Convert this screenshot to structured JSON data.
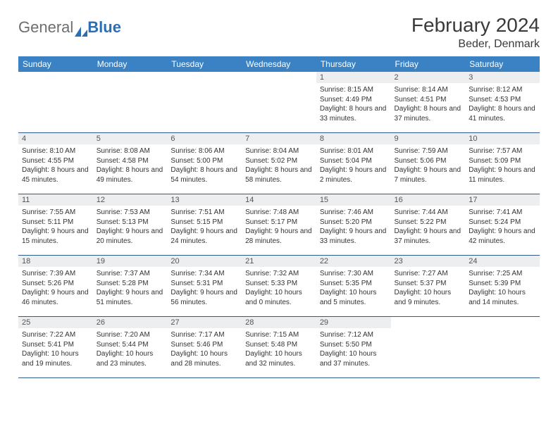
{
  "brand": {
    "part1": "General",
    "part2": "Blue"
  },
  "title": "February 2024",
  "location": "Beder, Denmark",
  "colors": {
    "header_bg": "#3b82c4",
    "header_text": "#ffffff",
    "daynum_bg": "#eceef0",
    "rule": "#2f5a8a",
    "logo_gray": "#6e6e6e",
    "logo_blue": "#2a6fb5"
  },
  "weekdays": [
    "Sunday",
    "Monday",
    "Tuesday",
    "Wednesday",
    "Thursday",
    "Friday",
    "Saturday"
  ],
  "days": [
    {
      "n": "1",
      "sunrise": "8:15 AM",
      "sunset": "4:49 PM",
      "daylight": "8 hours and 33 minutes."
    },
    {
      "n": "2",
      "sunrise": "8:14 AM",
      "sunset": "4:51 PM",
      "daylight": "8 hours and 37 minutes."
    },
    {
      "n": "3",
      "sunrise": "8:12 AM",
      "sunset": "4:53 PM",
      "daylight": "8 hours and 41 minutes."
    },
    {
      "n": "4",
      "sunrise": "8:10 AM",
      "sunset": "4:55 PM",
      "daylight": "8 hours and 45 minutes."
    },
    {
      "n": "5",
      "sunrise": "8:08 AM",
      "sunset": "4:58 PM",
      "daylight": "8 hours and 49 minutes."
    },
    {
      "n": "6",
      "sunrise": "8:06 AM",
      "sunset": "5:00 PM",
      "daylight": "8 hours and 54 minutes."
    },
    {
      "n": "7",
      "sunrise": "8:04 AM",
      "sunset": "5:02 PM",
      "daylight": "8 hours and 58 minutes."
    },
    {
      "n": "8",
      "sunrise": "8:01 AM",
      "sunset": "5:04 PM",
      "daylight": "9 hours and 2 minutes."
    },
    {
      "n": "9",
      "sunrise": "7:59 AM",
      "sunset": "5:06 PM",
      "daylight": "9 hours and 7 minutes."
    },
    {
      "n": "10",
      "sunrise": "7:57 AM",
      "sunset": "5:09 PM",
      "daylight": "9 hours and 11 minutes."
    },
    {
      "n": "11",
      "sunrise": "7:55 AM",
      "sunset": "5:11 PM",
      "daylight": "9 hours and 15 minutes."
    },
    {
      "n": "12",
      "sunrise": "7:53 AM",
      "sunset": "5:13 PM",
      "daylight": "9 hours and 20 minutes."
    },
    {
      "n": "13",
      "sunrise": "7:51 AM",
      "sunset": "5:15 PM",
      "daylight": "9 hours and 24 minutes."
    },
    {
      "n": "14",
      "sunrise": "7:48 AM",
      "sunset": "5:17 PM",
      "daylight": "9 hours and 28 minutes."
    },
    {
      "n": "15",
      "sunrise": "7:46 AM",
      "sunset": "5:20 PM",
      "daylight": "9 hours and 33 minutes."
    },
    {
      "n": "16",
      "sunrise": "7:44 AM",
      "sunset": "5:22 PM",
      "daylight": "9 hours and 37 minutes."
    },
    {
      "n": "17",
      "sunrise": "7:41 AM",
      "sunset": "5:24 PM",
      "daylight": "9 hours and 42 minutes."
    },
    {
      "n": "18",
      "sunrise": "7:39 AM",
      "sunset": "5:26 PM",
      "daylight": "9 hours and 46 minutes."
    },
    {
      "n": "19",
      "sunrise": "7:37 AM",
      "sunset": "5:28 PM",
      "daylight": "9 hours and 51 minutes."
    },
    {
      "n": "20",
      "sunrise": "7:34 AM",
      "sunset": "5:31 PM",
      "daylight": "9 hours and 56 minutes."
    },
    {
      "n": "21",
      "sunrise": "7:32 AM",
      "sunset": "5:33 PM",
      "daylight": "10 hours and 0 minutes."
    },
    {
      "n": "22",
      "sunrise": "7:30 AM",
      "sunset": "5:35 PM",
      "daylight": "10 hours and 5 minutes."
    },
    {
      "n": "23",
      "sunrise": "7:27 AM",
      "sunset": "5:37 PM",
      "daylight": "10 hours and 9 minutes."
    },
    {
      "n": "24",
      "sunrise": "7:25 AM",
      "sunset": "5:39 PM",
      "daylight": "10 hours and 14 minutes."
    },
    {
      "n": "25",
      "sunrise": "7:22 AM",
      "sunset": "5:41 PM",
      "daylight": "10 hours and 19 minutes."
    },
    {
      "n": "26",
      "sunrise": "7:20 AM",
      "sunset": "5:44 PM",
      "daylight": "10 hours and 23 minutes."
    },
    {
      "n": "27",
      "sunrise": "7:17 AM",
      "sunset": "5:46 PM",
      "daylight": "10 hours and 28 minutes."
    },
    {
      "n": "28",
      "sunrise": "7:15 AM",
      "sunset": "5:48 PM",
      "daylight": "10 hours and 32 minutes."
    },
    {
      "n": "29",
      "sunrise": "7:12 AM",
      "sunset": "5:50 PM",
      "daylight": "10 hours and 37 minutes."
    }
  ],
  "labels": {
    "sunrise": "Sunrise:",
    "sunset": "Sunset:",
    "daylight": "Daylight:"
  },
  "grid": {
    "first_weekday_index": 4,
    "total_cells": 35
  }
}
